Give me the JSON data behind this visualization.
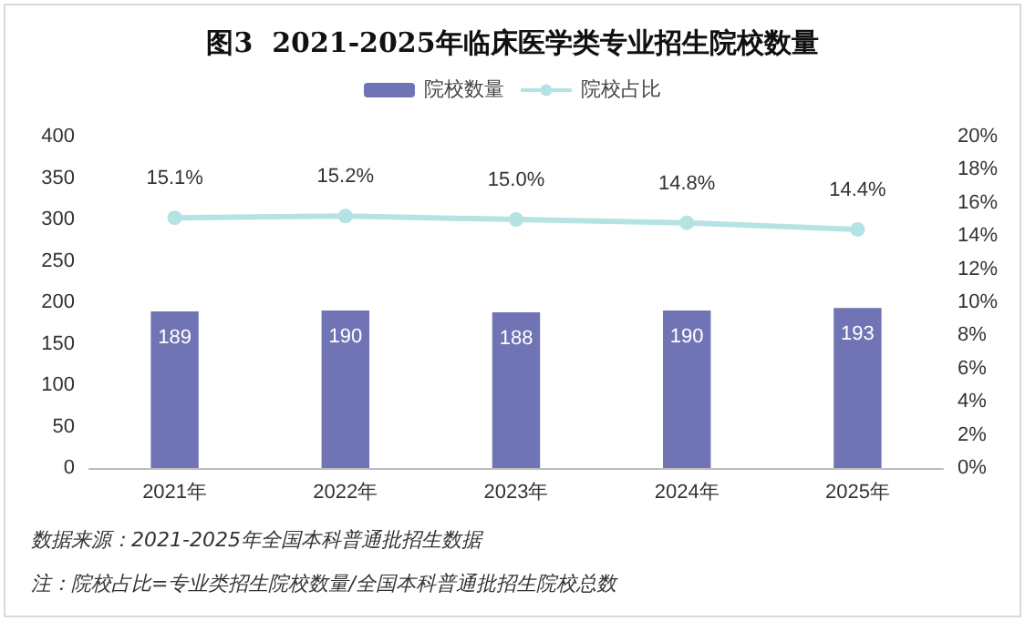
{
  "chart_data": {
    "type": "bar",
    "title": "图3  2021-2025年临床医学类专业招生院校数量",
    "categories": [
      "2021年",
      "2022年",
      "2023年",
      "2024年",
      "2025年"
    ],
    "series": [
      {
        "name": "院校数量",
        "color": "#7074b4",
        "values": [
          189,
          190,
          188,
          190,
          193
        ],
        "value_labels": [
          "189",
          "190",
          "188",
          "190",
          "193"
        ]
      },
      {
        "name": "院校占比",
        "type": "line",
        "axis": "y2",
        "color": "#b5e3e3",
        "values": [
          15.1,
          15.2,
          15.0,
          14.8,
          14.4
        ],
        "value_labels": [
          "15.1%",
          "15.2%",
          "15.0%",
          "14.8%",
          "14.4%"
        ]
      }
    ],
    "ylim": [
      0,
      400
    ],
    "yticks": [
      0,
      50,
      100,
      150,
      200,
      250,
      300,
      350,
      400
    ],
    "y2lim": [
      0,
      20
    ],
    "y2ticks": [
      {
        "value": 0,
        "label": "0%"
      },
      {
        "value": 2,
        "label": "2%"
      },
      {
        "value": 4,
        "label": "4%"
      },
      {
        "value": 6,
        "label": "6%"
      },
      {
        "value": 8,
        "label": "8%"
      },
      {
        "value": 10,
        "label": "10%"
      },
      {
        "value": 12,
        "label": "12%"
      },
      {
        "value": 14,
        "label": "14%"
      },
      {
        "value": 16,
        "label": "16%"
      },
      {
        "value": 18,
        "label": "18%"
      },
      {
        "value": 20,
        "label": "20%"
      }
    ],
    "legend": "top",
    "grid": false,
    "marker": "circle",
    "annotations": [
      "数据来源：2021-2025年全国本科普通批招生数据",
      "注：院校占比=专业类招生院校数量/全国本科普通批招生院校总数"
    ]
  }
}
